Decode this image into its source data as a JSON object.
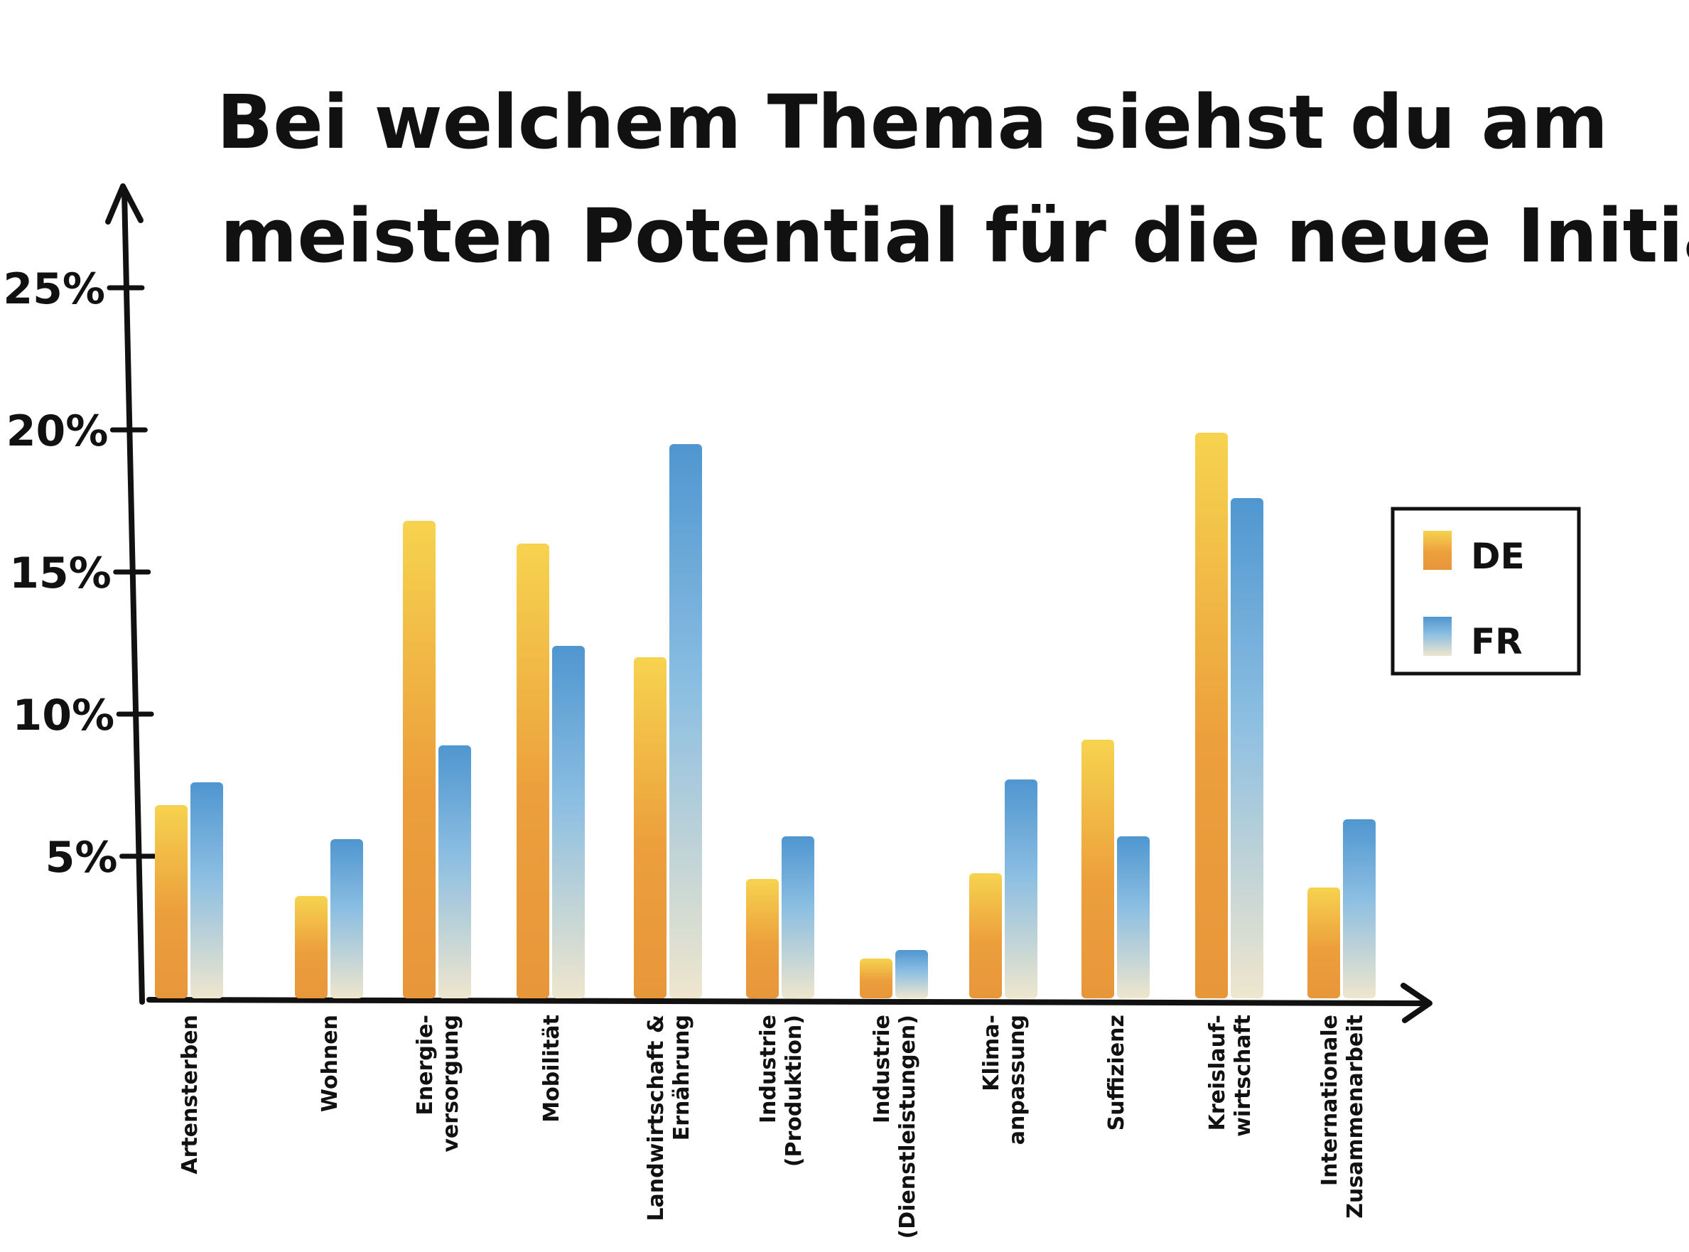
{
  "chart_data": {
    "type": "bar",
    "title_lines": [
      "Bei welchem Thema siehst du am",
      "meisten Potential für die neue Initiative?"
    ],
    "categories": [
      [
        "Artensterben"
      ],
      [
        "Wohnen"
      ],
      [
        "Energie-",
        "versorgung"
      ],
      [
        "Mobilität"
      ],
      [
        "Landwirtschaft &",
        "Ernährung"
      ],
      [
        "Industrie",
        "(Produktion)"
      ],
      [
        "Industrie",
        "(Dienstleistungen)"
      ],
      [
        "Klima-",
        "anpassung"
      ],
      [
        "Suffizienz"
      ],
      [
        "Kreislauf-",
        "wirtschaft"
      ],
      [
        "Internationale",
        "Zusammenarbeit"
      ]
    ],
    "series": [
      {
        "name": "DE",
        "values": [
          6.8,
          3.6,
          16.8,
          16.0,
          12.0,
          4.2,
          1.4,
          4.4,
          9.1,
          19.9,
          3.9
        ],
        "color_top": "#f6d34f",
        "color_bottom": "#eb9a3b"
      },
      {
        "name": "FR",
        "values": [
          7.6,
          5.6,
          8.9,
          12.4,
          19.5,
          5.7,
          1.7,
          7.7,
          5.7,
          17.6,
          6.3
        ],
        "color_top": "#4f96d0",
        "color_bottom": "#ede3c9"
      }
    ],
    "yticks": [
      "5%",
      "10%",
      "15%",
      "20%",
      "25%"
    ],
    "ytick_values": [
      5,
      10,
      15,
      20,
      25
    ],
    "ylim": [
      0,
      25
    ],
    "legend_position": "right",
    "grid": false
  }
}
